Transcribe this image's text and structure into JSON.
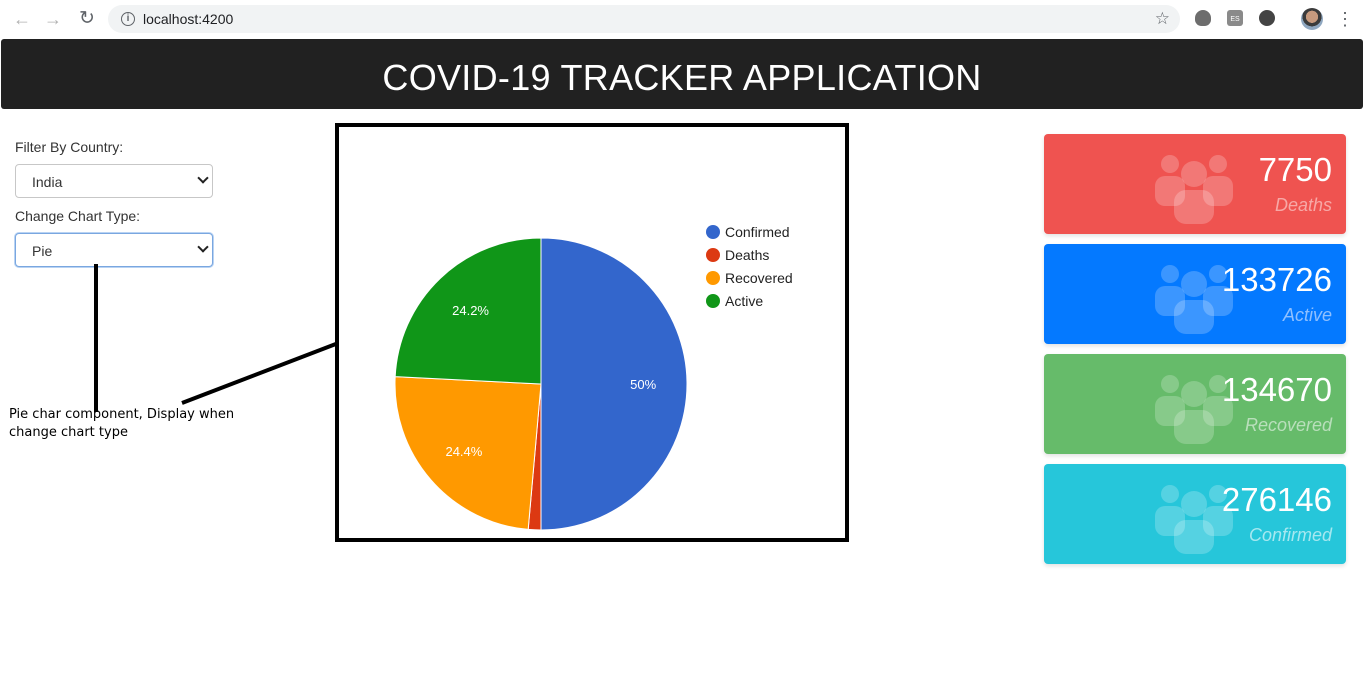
{
  "browser": {
    "url": "localhost:4200"
  },
  "header": {
    "title": "COVID-19 TRACKER APPLICATION"
  },
  "filters": {
    "country_label": "Filter By Country:",
    "country_value": "India",
    "chart_type_label": "Change Chart Type:",
    "chart_type_value": "Pie"
  },
  "annotation": {
    "text": "Pie char component, Display when change chart type"
  },
  "chart_data": {
    "type": "pie",
    "categories": [
      "Confirmed",
      "Deaths",
      "Recovered",
      "Active"
    ],
    "values": [
      50,
      1.4,
      24.4,
      24.2
    ],
    "data_labels": [
      "50%",
      "",
      "24.4%",
      "24.2%"
    ],
    "colors": [
      "#3366cc",
      "#dc3912",
      "#ff9900",
      "#109618"
    ],
    "legend_position": "right"
  },
  "stats": [
    {
      "value": "7750",
      "label": "Deaths",
      "color": "#ef5350",
      "label_color": "#f7a8a6",
      "icon": "users-icon"
    },
    {
      "value": "133726",
      "label": "Active",
      "color": "#0479ff",
      "label_color": "#8fc0ff",
      "icon": "users-icon"
    },
    {
      "value": "134670",
      "label": "Recovered",
      "color": "#66bb6a",
      "label_color": "#b9dfbb",
      "icon": "users-icon"
    },
    {
      "value": "276146",
      "label": "Confirmed",
      "color": "#26c6da",
      "label_color": "#a6e8f0",
      "icon": "users-icon"
    }
  ]
}
